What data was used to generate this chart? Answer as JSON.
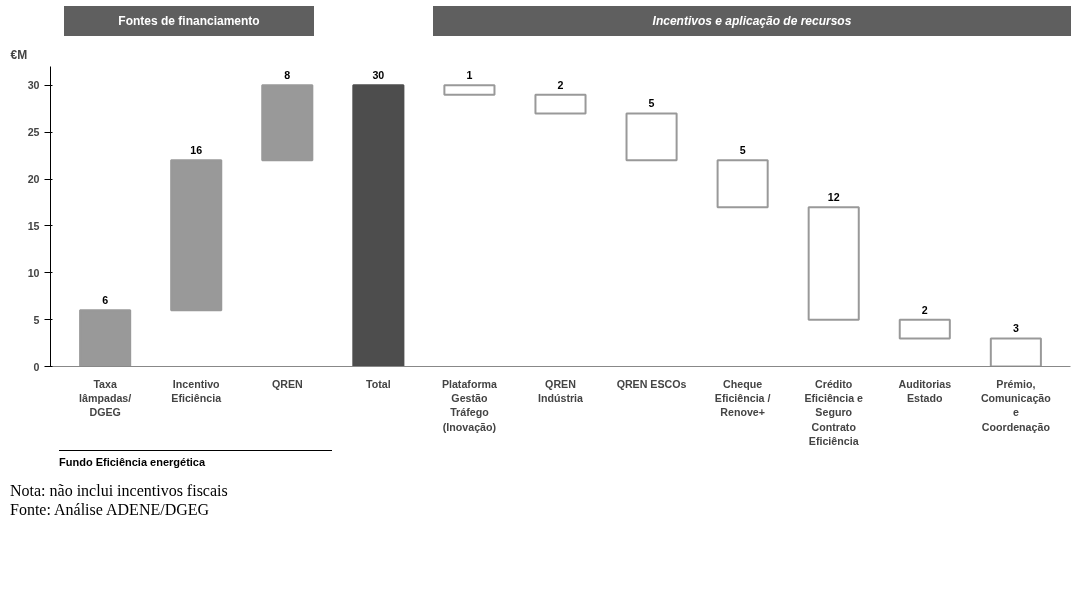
{
  "chart_data": {
    "type": "bar",
    "ylabel": "€M",
    "categories": [
      "Taxa lâmpadas/ DGEG",
      "Incentivo Eficiência",
      "QREN",
      "Total",
      "Plataforma Gestão Tráfego (Inovação)",
      "QREN Indústria",
      "QREN ESCOs",
      "Cheque Eficiência / Renove+",
      "Crédito Eficiência e Seguro Contrato Eficiência",
      "Auditorias Estado",
      "Prémio, Comunicação e Coordenação"
    ],
    "values": [
      6,
      16,
      8,
      30,
      1,
      2,
      5,
      5,
      12,
      2,
      3
    ],
    "base": [
      0,
      6,
      22,
      0,
      29,
      27,
      22,
      17,
      5,
      3,
      0
    ],
    "colors": [
      "#999999",
      "#999999",
      "#999999",
      "#4d4d4d",
      "#ffffff",
      "#ffffff",
      "#ffffff",
      "#ffffff",
      "#ffffff",
      "#ffffff",
      "#ffffff"
    ],
    "data_labels": true,
    "ylim": [
      0,
      32
    ],
    "yticks": [
      0,
      5,
      10,
      15,
      20,
      25,
      30
    ],
    "grid": false,
    "annotations": [
      "Fontes de financiamento",
      "Incentivos e aplicação de recursos",
      "Fundo Eficiência energética",
      "Nota: não inclui incentivos fiscais",
      "Fonte: Análise ADENE/DGEG"
    ]
  }
}
